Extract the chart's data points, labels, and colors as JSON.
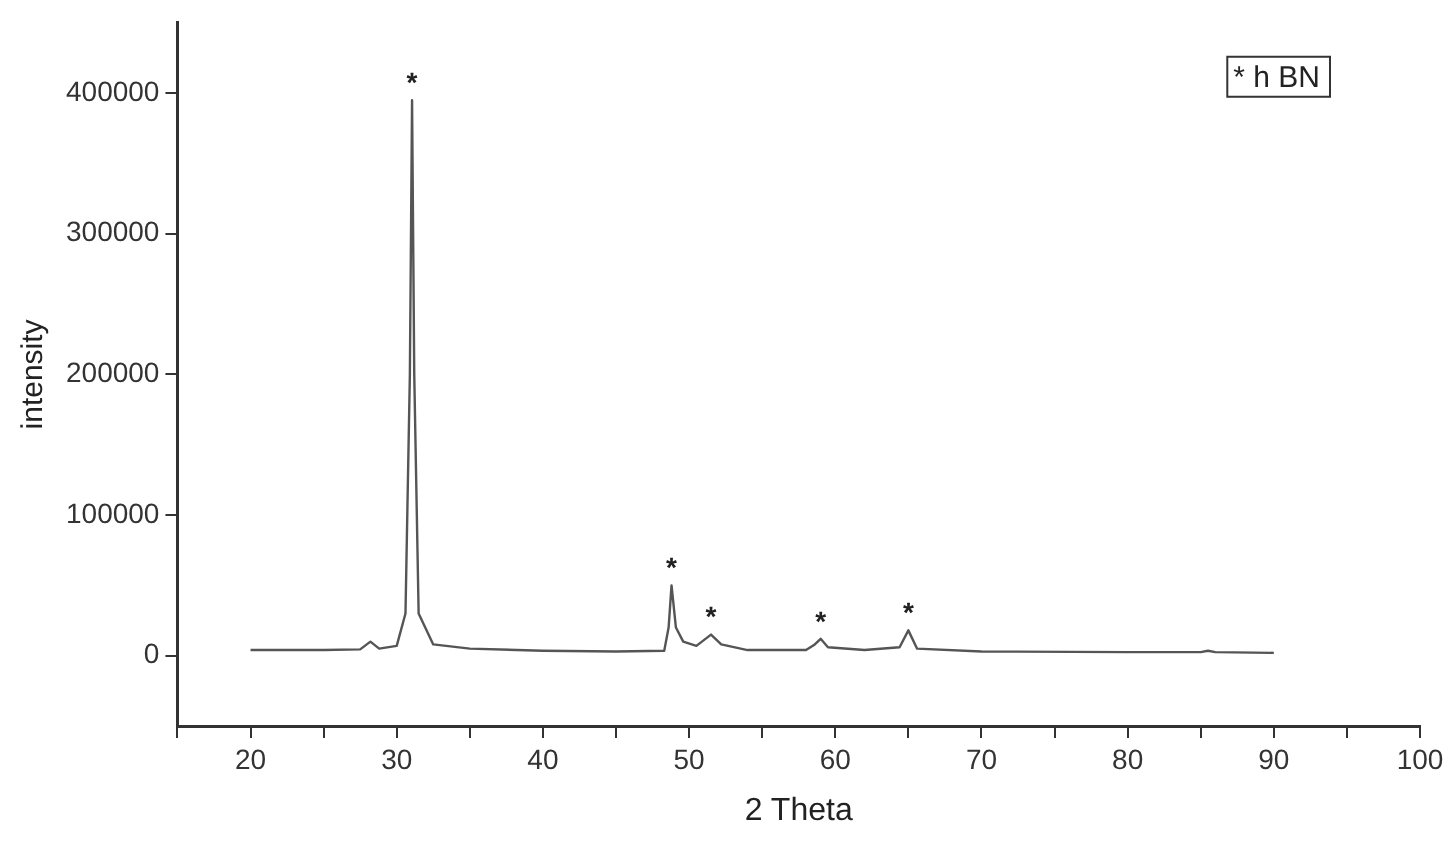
{
  "chart_data": {
    "type": "line",
    "xlabel": "2 Theta",
    "ylabel": "intensity",
    "x": [
      20,
      25,
      27.5,
      28.2,
      28.8,
      30.0,
      30.6,
      30.9,
      31.05,
      31.2,
      31.5,
      32.5,
      35,
      40,
      45,
      48.3,
      48.6,
      48.8,
      49.1,
      49.6,
      50.5,
      51.5,
      52.2,
      54,
      58,
      58.6,
      59,
      59.5,
      62,
      64.4,
      65,
      65.6,
      70,
      80,
      85,
      85.5,
      86,
      90
    ],
    "series": [
      {
        "color": "#555555",
        "values": [
          4000,
          4000,
          4500,
          10000,
          5000,
          7000,
          30000,
          200000,
          395000,
          200000,
          30000,
          8000,
          5000,
          3500,
          3000,
          3500,
          20000,
          50000,
          20000,
          10000,
          7000,
          15000,
          8000,
          4000,
          4000,
          8000,
          12000,
          6000,
          4000,
          6000,
          18000,
          5000,
          3000,
          2500,
          2500,
          3500,
          2500,
          2000
        ]
      }
    ],
    "xlim": [
      15,
      100
    ],
    "xticks": [
      {
        "value": 15,
        "label": null
      },
      20,
      {
        "value": 25,
        "label": null
      },
      30,
      {
        "value": 35,
        "label": null
      },
      40,
      {
        "value": 45,
        "label": null
      },
      50,
      {
        "value": 55,
        "label": null
      },
      60,
      {
        "value": 65,
        "label": null
      },
      70,
      {
        "value": 75,
        "label": null
      },
      80,
      {
        "value": 85,
        "label": null
      },
      90,
      {
        "value": 95,
        "label": null
      },
      100
    ],
    "ylim": [
      -50000,
      450000
    ],
    "yticks": [
      0,
      100000,
      200000,
      300000,
      400000
    ],
    "grid": false,
    "legend": false,
    "marker": "none",
    "line_style": "solid",
    "annotations": [
      {
        "text": "*",
        "x": 31.05,
        "y": 395000
      },
      {
        "text": "*",
        "x": 48.8,
        "y": 50000
      },
      {
        "text": "*",
        "x": 51.5,
        "y": 15000
      },
      {
        "text": "*",
        "x": 59,
        "y": 12000
      },
      {
        "text": "*",
        "x": 65,
        "y": 18000
      },
      "* h BN"
    ]
  }
}
